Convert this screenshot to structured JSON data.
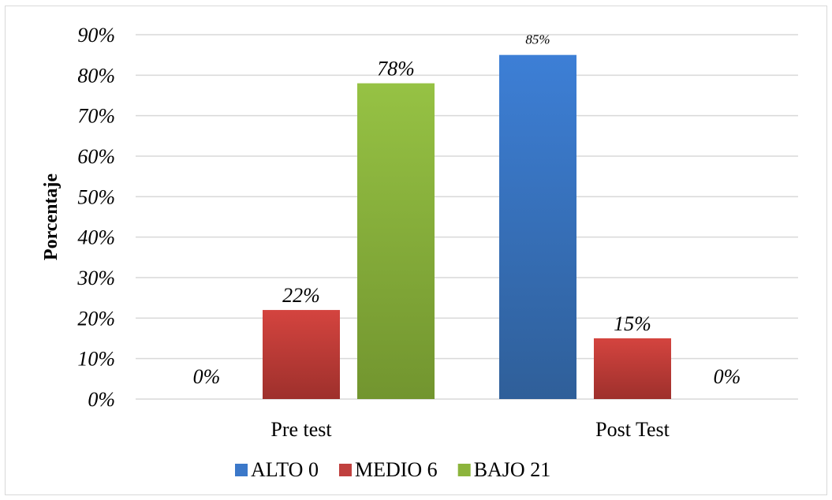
{
  "chart_data": {
    "type": "bar",
    "categories": [
      "Pre test",
      "Post Test"
    ],
    "series": [
      {
        "name": "ALTO 0",
        "values": [
          0,
          85
        ],
        "labels": [
          "",
          "85%"
        ],
        "color": "#3b78c9"
      },
      {
        "name": "MEDIO 6",
        "values": [
          22,
          15
        ],
        "labels": [
          "22%",
          "15%"
        ],
        "color": "#c0403e"
      },
      {
        "name": "BAJO 21",
        "values": [
          78,
          0
        ],
        "labels": [
          "78%",
          "0%"
        ],
        "color": "#8cb43c"
      }
    ],
    "extra_label": "0%",
    "ylabel": "Porcentaje",
    "ylim": [
      0,
      90
    ],
    "ytick_step": 10,
    "ytick_labels": [
      "0%",
      "10%",
      "20%",
      "30%",
      "40%",
      "50%",
      "60%",
      "70%",
      "80%",
      "90%"
    ],
    "grid": true,
    "legend_position": "bottom"
  }
}
